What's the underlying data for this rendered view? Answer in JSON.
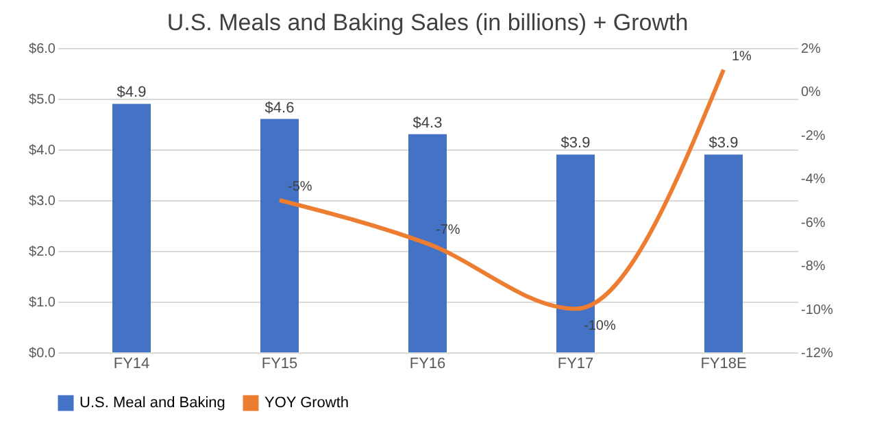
{
  "chart_data": {
    "type": "bar",
    "title": "U.S. Meals and Baking Sales (in billions) + Growth",
    "categories": [
      "FY14",
      "FY15",
      "FY16",
      "FY17",
      "FY18E"
    ],
    "series": [
      {
        "name": "U.S. Meal and Baking",
        "color": "#4472c4",
        "values": [
          4.9,
          4.6,
          4.3,
          3.9,
          3.9
        ],
        "value_labels": [
          "$4.9",
          "$4.6",
          "$4.3",
          "$3.9",
          "$3.9"
        ]
      },
      {
        "name": "YOY Growth",
        "type": "line",
        "axis": "y2",
        "color": "#ed7d31",
        "values": [
          null,
          -5,
          -7,
          -10,
          1
        ],
        "value_labels": [
          null,
          "-5%",
          "-7%",
          "-10%",
          "1%"
        ]
      }
    ],
    "ylim": [
      0,
      6
    ],
    "yticks": [
      {
        "value": 0,
        "label": "$0.0"
      },
      {
        "value": 1,
        "label": "$1.0"
      },
      {
        "value": 2,
        "label": "$2.0"
      },
      {
        "value": 3,
        "label": "$3.0"
      },
      {
        "value": 4,
        "label": "$4.0"
      },
      {
        "value": 5,
        "label": "$5.0"
      },
      {
        "value": 6,
        "label": "$6.0"
      }
    ],
    "y2lim": [
      -12,
      2
    ],
    "y2ticks": [
      {
        "value": -12,
        "label": "-12%"
      },
      {
        "value": -10,
        "label": "-10%"
      },
      {
        "value": -8,
        "label": "-8%"
      },
      {
        "value": -6,
        "label": "-6%"
      },
      {
        "value": -4,
        "label": "-4%"
      },
      {
        "value": -2,
        "label": "-2%"
      },
      {
        "value": 0,
        "label": "0%"
      },
      {
        "value": 2,
        "label": "2%"
      }
    ],
    "grid": "y",
    "legend": "bottom"
  }
}
